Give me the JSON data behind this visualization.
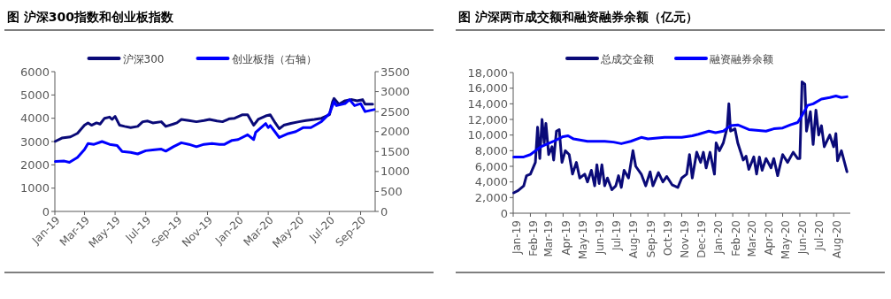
{
  "chart_data": [
    {
      "type": "line",
      "title": "图  沪深300指数和创业板指数",
      "legend": "top",
      "marker": "none",
      "line_style": "solid",
      "grid": false,
      "xlim": [
        "2019-01-01",
        "2020-09-30"
      ],
      "xticks": [
        {
          "value": "2019-01-01",
          "label": "Jan-19"
        },
        {
          "value": "2019-03-01",
          "label": "Mar-19"
        },
        {
          "value": "2019-05-01",
          "label": "May-19"
        },
        {
          "value": "2019-07-01",
          "label": "Jul-19"
        },
        {
          "value": "2019-09-01",
          "label": "Sep-19"
        },
        {
          "value": "2019-11-01",
          "label": "Nov-19"
        },
        {
          "value": "2020-01-01",
          "label": "Jan-20"
        },
        {
          "value": "2020-03-01",
          "label": "Mar-20"
        },
        {
          "value": "2020-05-01",
          "label": "May-20"
        },
        {
          "value": "2020-07-01",
          "label": "Jul-20"
        },
        {
          "value": "2020-09-01",
          "label": "Sep-20"
        }
      ],
      "ylim": [
        0,
        6000
      ],
      "yticks": [
        0,
        1000,
        2000,
        3000,
        4000,
        5000,
        6000
      ],
      "y2lim": [
        0,
        3500
      ],
      "y2ticks": [
        0,
        500,
        1000,
        1500,
        2000,
        2500,
        3000,
        3500
      ],
      "series": [
        {
          "name": "沪深300",
          "color": "#0a0a78",
          "x": [
            "2019-01-02",
            "2019-01-15",
            "2019-02-01",
            "2019-02-15",
            "2019-03-01",
            "2019-03-08",
            "2019-03-15",
            "2019-03-25",
            "2019-04-01",
            "2019-04-10",
            "2019-04-20",
            "2019-04-25",
            "2019-05-01",
            "2019-05-10",
            "2019-05-20",
            "2019-06-01",
            "2019-06-15",
            "2019-06-25",
            "2019-07-05",
            "2019-07-15",
            "2019-08-01",
            "2019-08-10",
            "2019-08-25",
            "2019-09-01",
            "2019-09-10",
            "2019-09-25",
            "2019-10-10",
            "2019-10-25",
            "2019-11-05",
            "2019-11-20",
            "2019-12-01",
            "2019-12-15",
            "2019-12-25",
            "2020-01-10",
            "2020-01-20",
            "2020-02-01",
            "2020-02-10",
            "2020-02-25",
            "2020-03-05",
            "2020-03-15",
            "2020-03-23",
            "2020-04-01",
            "2020-04-15",
            "2020-05-01",
            "2020-05-15",
            "2020-06-01",
            "2020-06-15",
            "2020-07-01",
            "2020-07-07",
            "2020-07-10",
            "2020-07-20",
            "2020-08-01",
            "2020-08-15",
            "2020-08-25",
            "2020-09-05",
            "2020-09-10",
            "2020-09-25"
          ],
          "values": [
            3010,
            3150,
            3200,
            3350,
            3700,
            3800,
            3700,
            3800,
            3750,
            4000,
            4050,
            3950,
            4080,
            3700,
            3650,
            3600,
            3650,
            3850,
            3880,
            3800,
            3850,
            3650,
            3750,
            3800,
            3950,
            3900,
            3850,
            3900,
            3950,
            3880,
            3850,
            3980,
            4000,
            4150,
            4150,
            3700,
            3950,
            4100,
            4150,
            3800,
            3550,
            3700,
            3780,
            3850,
            3900,
            3950,
            4000,
            4150,
            4700,
            4850,
            4600,
            4750,
            4800,
            4750,
            4800,
            4600,
            4600
          ]
        },
        {
          "name": "创业板指（右轴）",
          "color": "#0000ff",
          "axis": "y2",
          "x": [
            "2019-01-02",
            "2019-01-20",
            "2019-01-30",
            "2019-02-15",
            "2019-03-01",
            "2019-03-08",
            "2019-03-20",
            "2019-04-05",
            "2019-04-20",
            "2019-05-05",
            "2019-05-15",
            "2019-06-01",
            "2019-06-15",
            "2019-07-01",
            "2019-07-15",
            "2019-08-01",
            "2019-08-10",
            "2019-08-25",
            "2019-09-10",
            "2019-09-25",
            "2019-10-10",
            "2019-10-25",
            "2019-11-10",
            "2019-11-25",
            "2019-12-05",
            "2019-12-20",
            "2020-01-01",
            "2020-01-20",
            "2020-02-01",
            "2020-02-05",
            "2020-02-25",
            "2020-03-01",
            "2020-03-05",
            "2020-03-23",
            "2020-04-10",
            "2020-04-25",
            "2020-05-10",
            "2020-05-25",
            "2020-06-15",
            "2020-07-01",
            "2020-07-10",
            "2020-07-15",
            "2020-08-01",
            "2020-08-10",
            "2020-08-20",
            "2020-09-01",
            "2020-09-10",
            "2020-09-28"
          ],
          "values": [
            1250,
            1260,
            1230,
            1350,
            1550,
            1700,
            1680,
            1750,
            1680,
            1650,
            1500,
            1480,
            1440,
            1520,
            1540,
            1560,
            1510,
            1620,
            1720,
            1680,
            1620,
            1680,
            1700,
            1680,
            1680,
            1780,
            1800,
            1920,
            1800,
            1980,
            2200,
            2100,
            2150,
            1850,
            1950,
            2000,
            2100,
            2100,
            2250,
            2450,
            2750,
            2650,
            2700,
            2800,
            2650,
            2700,
            2500,
            2550
          ]
        }
      ]
    },
    {
      "type": "line",
      "title": "图  沪深两市成交额和融资融券余额（亿元）",
      "legend": "top",
      "marker": "none",
      "line_style": "solid",
      "grid": false,
      "xlim": [
        "2019-01-01",
        "2020-08-31"
      ],
      "xticks": [
        {
          "value": "2019-01-01",
          "label": "Jan-19"
        },
        {
          "value": "2019-02-01",
          "label": "Feb-19"
        },
        {
          "value": "2019-03-01",
          "label": "Mar-19"
        },
        {
          "value": "2019-04-01",
          "label": "Apr-19"
        },
        {
          "value": "2019-05-01",
          "label": "May-19"
        },
        {
          "value": "2019-06-01",
          "label": "Jun-19"
        },
        {
          "value": "2019-07-01",
          "label": "Jul-19"
        },
        {
          "value": "2019-08-01",
          "label": "Aug-19"
        },
        {
          "value": "2019-09-01",
          "label": "Sep-19"
        },
        {
          "value": "2019-10-01",
          "label": "Oct-19"
        },
        {
          "value": "2019-11-01",
          "label": "Nov-19"
        },
        {
          "value": "2019-12-01",
          "label": "Dec-19"
        },
        {
          "value": "2020-01-01",
          "label": "Jan-20"
        },
        {
          "value": "2020-02-01",
          "label": "Feb-20"
        },
        {
          "value": "2020-03-01",
          "label": "Mar-20"
        },
        {
          "value": "2020-04-01",
          "label": "Apr-20"
        },
        {
          "value": "2020-05-01",
          "label": "May-20"
        },
        {
          "value": "2020-06-01",
          "label": "Jun-20"
        },
        {
          "value": "2020-07-01",
          "label": "Jul-20"
        },
        {
          "value": "2020-08-01",
          "label": "Aug-20"
        }
      ],
      "ylim": [
        0,
        18000
      ],
      "yticks": [
        0,
        {
          "value": 2000,
          "label": "2,000"
        },
        {
          "value": 4000,
          "label": "4,000"
        },
        {
          "value": 6000,
          "label": "6,000"
        },
        {
          "value": 8000,
          "label": "8,000"
        },
        {
          "value": 10000,
          "label": "10,000"
        },
        {
          "value": 12000,
          "label": "12,000"
        },
        {
          "value": 14000,
          "label": "14,000"
        },
        {
          "value": 16000,
          "label": "16,000"
        },
        {
          "value": 18000,
          "label": "18,000"
        }
      ],
      "series": [
        {
          "name": "总成交金额",
          "color": "#0a0a78",
          "x": [
            "2019-01-02",
            "2019-01-10",
            "2019-01-20",
            "2019-01-25",
            "2019-02-01",
            "2019-02-10",
            "2019-02-14",
            "2019-02-18",
            "2019-02-22",
            "2019-02-26",
            "2019-03-01",
            "2019-03-06",
            "2019-03-12",
            "2019-03-15",
            "2019-03-20",
            "2019-03-25",
            "2019-03-30",
            "2019-04-05",
            "2019-04-12",
            "2019-04-18",
            "2019-04-25",
            "2019-05-01",
            "2019-05-10",
            "2019-05-15",
            "2019-05-22",
            "2019-05-28",
            "2019-06-01",
            "2019-06-05",
            "2019-06-10",
            "2019-06-15",
            "2019-06-20",
            "2019-06-28",
            "2019-07-05",
            "2019-07-10",
            "2019-07-15",
            "2019-07-20",
            "2019-07-28",
            "2019-08-05",
            "2019-08-10",
            "2019-08-20",
            "2019-08-28",
            "2019-09-05",
            "2019-09-10",
            "2019-09-20",
            "2019-09-28",
            "2019-10-05",
            "2019-10-15",
            "2019-10-25",
            "2019-11-01",
            "2019-11-10",
            "2019-11-15",
            "2019-11-20",
            "2019-11-28",
            "2019-12-05",
            "2019-12-10",
            "2019-12-15",
            "2019-12-22",
            "2019-12-30",
            "2020-01-02",
            "2020-01-08",
            "2020-01-15",
            "2020-01-22",
            "2020-01-25",
            "2020-01-28",
            "2020-02-05",
            "2020-02-10",
            "2020-02-20",
            "2020-02-25",
            "2020-03-01",
            "2020-03-10",
            "2020-03-15",
            "2020-03-20",
            "2020-03-25",
            "2020-04-01",
            "2020-04-10",
            "2020-04-15",
            "2020-04-22",
            "2020-05-01",
            "2020-05-10",
            "2020-05-20",
            "2020-05-28",
            "2020-06-01",
            "2020-06-05",
            "2020-06-10",
            "2020-06-13",
            "2020-06-20",
            "2020-06-25",
            "2020-06-30",
            "2020-07-05",
            "2020-07-10",
            "2020-07-15",
            "2020-07-25",
            "2020-08-01",
            "2020-08-05",
            "2020-08-08",
            "2020-08-15",
            "2020-08-25"
          ],
          "values": [
            2600,
            2900,
            3500,
            4800,
            5000,
            6500,
            11000,
            7000,
            12000,
            9000,
            11500,
            7500,
            8500,
            6800,
            10500,
            10700,
            6500,
            8000,
            7500,
            5000,
            6500,
            4500,
            5000,
            4000,
            5500,
            3500,
            6200,
            3800,
            6200,
            3500,
            4500,
            3000,
            3500,
            4800,
            3300,
            5500,
            4500,
            8000,
            6000,
            5000,
            3500,
            5300,
            3500,
            5200,
            4000,
            4700,
            3600,
            3300,
            4500,
            5000,
            7500,
            4500,
            7800,
            6500,
            7800,
            5800,
            7800,
            5000,
            9000,
            8000,
            9000,
            11000,
            14000,
            10500,
            10800,
            9000,
            6800,
            7300,
            5600,
            7200,
            5000,
            7200,
            5500,
            7000,
            5800,
            7000,
            4800,
            7500,
            6500,
            7800,
            7000,
            7000,
            16800,
            16500,
            10500,
            13000,
            8800,
            13200,
            10000,
            11200,
            8500,
            10000,
            8500,
            10200,
            6700,
            8000,
            5300
          ]
        },
        {
          "name": "融资融券余额",
          "color": "#0000ff",
          "x": [
            "2019-01-02",
            "2019-01-20",
            "2019-02-01",
            "2019-02-20",
            "2019-03-01",
            "2019-03-15",
            "2019-04-01",
            "2019-04-10",
            "2019-04-20",
            "2019-05-15",
            "2019-06-15",
            "2019-07-01",
            "2019-07-15",
            "2019-08-01",
            "2019-08-20",
            "2019-09-01",
            "2019-10-01",
            "2019-11-01",
            "2019-11-20",
            "2019-12-01",
            "2019-12-20",
            "2020-01-01",
            "2020-01-15",
            "2020-01-28",
            "2020-02-10",
            "2020-03-01",
            "2020-04-01",
            "2020-04-15",
            "2020-05-01",
            "2020-05-15",
            "2020-05-28",
            "2020-06-05",
            "2020-06-15",
            "2020-06-25",
            "2020-07-10",
            "2020-07-25",
            "2020-08-05",
            "2020-08-15",
            "2020-08-25"
          ],
          "values": [
            7200,
            7200,
            7500,
            8500,
            8800,
            9200,
            9800,
            9900,
            9500,
            9200,
            9200,
            9100,
            8900,
            9200,
            9700,
            9500,
            9700,
            9700,
            9900,
            10100,
            10500,
            10300,
            10500,
            11200,
            11300,
            10700,
            10500,
            10800,
            10900,
            11300,
            11600,
            12500,
            13800,
            14000,
            14600,
            14800,
            15000,
            14800,
            14900
          ]
        }
      ]
    }
  ]
}
